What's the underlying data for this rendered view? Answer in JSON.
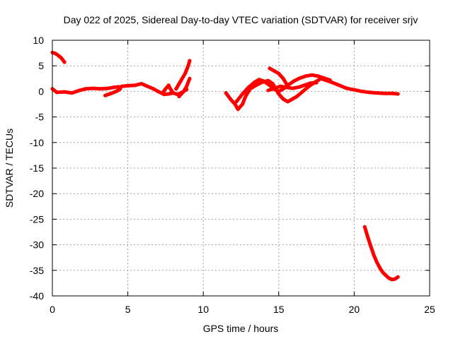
{
  "chart_data": {
    "type": "scatter",
    "title": "Day 022 of 2025, Sidereal Day-to-day VTEC variation (SDTVAR) for receiver srjv",
    "xlabel": "GPS time / hours",
    "ylabel": "SDTVAR / TECUs",
    "xlim": [
      0,
      25
    ],
    "ylim": [
      -40,
      10
    ],
    "xticks": [
      0,
      5,
      10,
      15,
      20,
      25
    ],
    "yticks": [
      10,
      5,
      0,
      -5,
      -10,
      -15,
      -20,
      -25,
      -30,
      -35,
      -40
    ],
    "grid": true,
    "series": [
      {
        "name": "SDTVAR",
        "color": "#ff0000",
        "segments": [
          [
            [
              0.0,
              7.6
            ],
            [
              0.2,
              7.4
            ],
            [
              0.4,
              7.0
            ],
            [
              0.6,
              6.5
            ],
            [
              0.8,
              5.7
            ]
          ],
          [
            [
              0.0,
              0.5
            ],
            [
              0.3,
              -0.2
            ],
            [
              0.8,
              -0.1
            ],
            [
              1.3,
              -0.3
            ],
            [
              1.8,
              0.2
            ],
            [
              2.2,
              0.5
            ],
            [
              2.7,
              0.6
            ],
            [
              3.2,
              0.5
            ],
            [
              3.7,
              0.6
            ],
            [
              4.1,
              0.8
            ],
            [
              4.4,
              0.9
            ]
          ],
          [
            [
              3.5,
              -0.8
            ],
            [
              3.9,
              -0.4
            ],
            [
              4.3,
              0.1
            ],
            [
              4.5,
              0.5
            ]
          ],
          [
            [
              4.6,
              1.0
            ],
            [
              5.0,
              1.1
            ],
            [
              5.5,
              1.2
            ],
            [
              5.9,
              1.5
            ],
            [
              6.3,
              1.0
            ],
            [
              6.7,
              0.5
            ],
            [
              7.0,
              0.0
            ],
            [
              7.4,
              -0.6
            ],
            [
              7.7,
              -0.5
            ],
            [
              8.0,
              -0.3
            ],
            [
              8.3,
              -0.6
            ],
            [
              8.6,
              -0.2
            ],
            [
              8.9,
              0.4
            ]
          ],
          [
            [
              7.3,
              -0.3
            ],
            [
              7.5,
              0.5
            ],
            [
              7.7,
              1.2
            ],
            [
              7.8,
              0.6
            ],
            [
              8.0,
              -0.3
            ]
          ],
          [
            [
              8.2,
              0.5
            ],
            [
              8.5,
              2.0
            ],
            [
              8.8,
              3.5
            ],
            [
              9.0,
              5.0
            ],
            [
              9.1,
              6.0
            ]
          ],
          [
            [
              8.4,
              -1.0
            ],
            [
              8.7,
              0.0
            ],
            [
              8.9,
              1.0
            ],
            [
              9.0,
              1.8
            ],
            [
              9.1,
              2.5
            ]
          ],
          [
            [
              11.5,
              -0.3
            ],
            [
              11.8,
              -1.5
            ],
            [
              12.1,
              -2.5
            ],
            [
              12.3,
              -3.5
            ],
            [
              12.6,
              -2.5
            ],
            [
              12.8,
              -1.0
            ],
            [
              13.1,
              0.5
            ],
            [
              13.5,
              1.2
            ],
            [
              13.9,
              1.8
            ],
            [
              14.3,
              2.1
            ],
            [
              14.6,
              1.5
            ],
            [
              15.0,
              -0.5
            ],
            [
              15.3,
              -1.5
            ],
            [
              15.6,
              -2.0
            ],
            [
              15.9,
              -1.5
            ],
            [
              16.2,
              -1.0
            ],
            [
              16.6,
              0.0
            ],
            [
              17.0,
              1.0
            ],
            [
              17.4,
              1.8
            ],
            [
              17.8,
              2.5
            ],
            [
              18.1,
              2.2
            ],
            [
              18.5,
              1.8
            ],
            [
              19.0,
              1.2
            ],
            [
              19.5,
              0.6
            ],
            [
              20.0,
              0.3
            ],
            [
              20.5,
              0.0
            ],
            [
              21.0,
              -0.2
            ],
            [
              21.5,
              -0.3
            ],
            [
              22.0,
              -0.4
            ],
            [
              22.5,
              -0.4
            ],
            [
              22.9,
              -0.5
            ]
          ],
          [
            [
              12.2,
              -2.0
            ],
            [
              12.6,
              -0.5
            ],
            [
              13.0,
              0.8
            ],
            [
              13.4,
              1.8
            ],
            [
              13.7,
              2.3
            ],
            [
              14.0,
              2.0
            ],
            [
              14.4,
              1.2
            ],
            [
              14.7,
              0.4
            ],
            [
              15.0,
              0.0
            ],
            [
              15.3,
              0.5
            ],
            [
              15.6,
              1.2
            ],
            [
              16.0,
              2.0
            ],
            [
              16.4,
              2.6
            ],
            [
              16.8,
              3.0
            ],
            [
              17.2,
              3.2
            ],
            [
              17.6,
              3.0
            ],
            [
              18.0,
              2.6
            ],
            [
              18.4,
              2.2
            ]
          ],
          [
            [
              14.4,
              4.5
            ],
            [
              14.7,
              4.0
            ],
            [
              15.0,
              3.5
            ],
            [
              15.3,
              2.5
            ],
            [
              15.5,
              1.5
            ]
          ],
          [
            [
              14.3,
              0.2
            ],
            [
              14.7,
              0.6
            ],
            [
              15.1,
              1.0
            ],
            [
              15.5,
              0.8
            ],
            [
              15.9,
              0.6
            ],
            [
              16.3,
              0.8
            ],
            [
              16.7,
              1.2
            ],
            [
              17.1,
              1.6
            ],
            [
              17.5,
              1.7
            ]
          ],
          [
            [
              20.7,
              -26.5
            ],
            [
              20.9,
              -28.5
            ],
            [
              21.1,
              -30.3
            ],
            [
              21.3,
              -32.0
            ],
            [
              21.5,
              -33.4
            ],
            [
              21.7,
              -34.5
            ],
            [
              21.9,
              -35.4
            ],
            [
              22.1,
              -36.0
            ],
            [
              22.3,
              -36.5
            ],
            [
              22.5,
              -36.8
            ],
            [
              22.7,
              -36.7
            ],
            [
              22.9,
              -36.3
            ]
          ]
        ]
      }
    ]
  }
}
